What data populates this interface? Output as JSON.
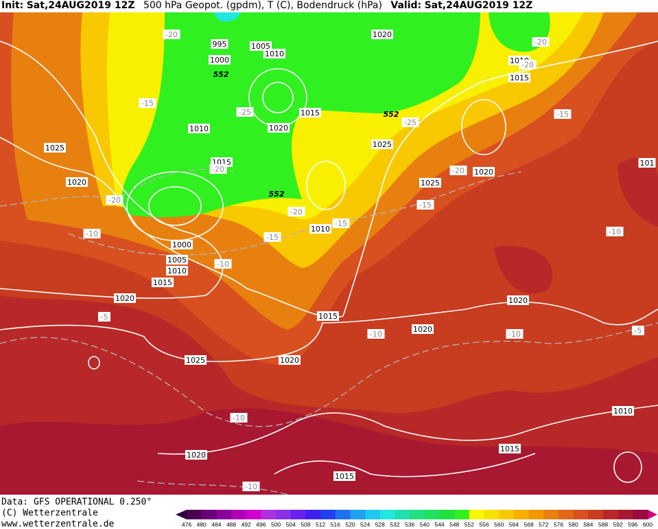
{
  "header": {
    "init_label": "Init:",
    "init_value": "Sat,24AUG2019 12Z",
    "title": "500 hPa Geopot. (gpdm), T (C), Bodendruck (hPa)",
    "valid_label": "Valid:",
    "valid_value": "Sat,24AUG2019 12Z"
  },
  "map": {
    "pressure_labels": [
      "1020",
      "995",
      "1005",
      "1000",
      "1010",
      "1010",
      "1015",
      "1015",
      "1020",
      "1010",
      "1025",
      "1025",
      "1015",
      "1020",
      "1020",
      "1025",
      "1010",
      "1000",
      "1005",
      "1010",
      "1015",
      "1020",
      "1020",
      "1015",
      "1020",
      "1025",
      "1020",
      "1010",
      "1015",
      "1020",
      "1015",
      "101"
    ],
    "temperature_labels": [
      "-20",
      "-15",
      "-25",
      "-25",
      "-15",
      "-20",
      "-20",
      "-20",
      "-20",
      "-20",
      "-15",
      "-20",
      "-15",
      "-10",
      "-15",
      "-10",
      "-10",
      "-5",
      "-10",
      "-10",
      "-5",
      "-10",
      "-10"
    ],
    "geopotential_labels": [
      "552",
      "552",
      "552"
    ]
  },
  "footer": {
    "source": "Data: GFS OPERATIONAL 0.250°",
    "copyright": "(C) Wetterzentrale",
    "url": "www.wetterzentrale.de"
  },
  "legend": {
    "ticks": [
      476,
      480,
      484,
      488,
      492,
      496,
      500,
      504,
      508,
      512,
      516,
      520,
      524,
      528,
      532,
      536,
      540,
      544,
      548,
      552,
      556,
      560,
      564,
      568,
      572,
      576,
      580,
      584,
      588,
      592,
      596,
      600
    ],
    "colors": [
      "#4b0050",
      "#6a0078",
      "#8a0096",
      "#b000b4",
      "#d000d0",
      "#b030e0",
      "#8a30e8",
      "#6a20f0",
      "#4020f0",
      "#2040f0",
      "#2070f0",
      "#20a0f0",
      "#20c8f0",
      "#20e8e0",
      "#20e0b0",
      "#20e080",
      "#20e060",
      "#20e040",
      "#30f020",
      "#f8f800",
      "#f8e000",
      "#f8c800",
      "#f8b000",
      "#f09800",
      "#e88010",
      "#e06818",
      "#d85020",
      "#c83c20",
      "#b82828",
      "#a81830",
      "#980a40"
    ],
    "low_color": "#300040",
    "high_color": "#d00080"
  }
}
